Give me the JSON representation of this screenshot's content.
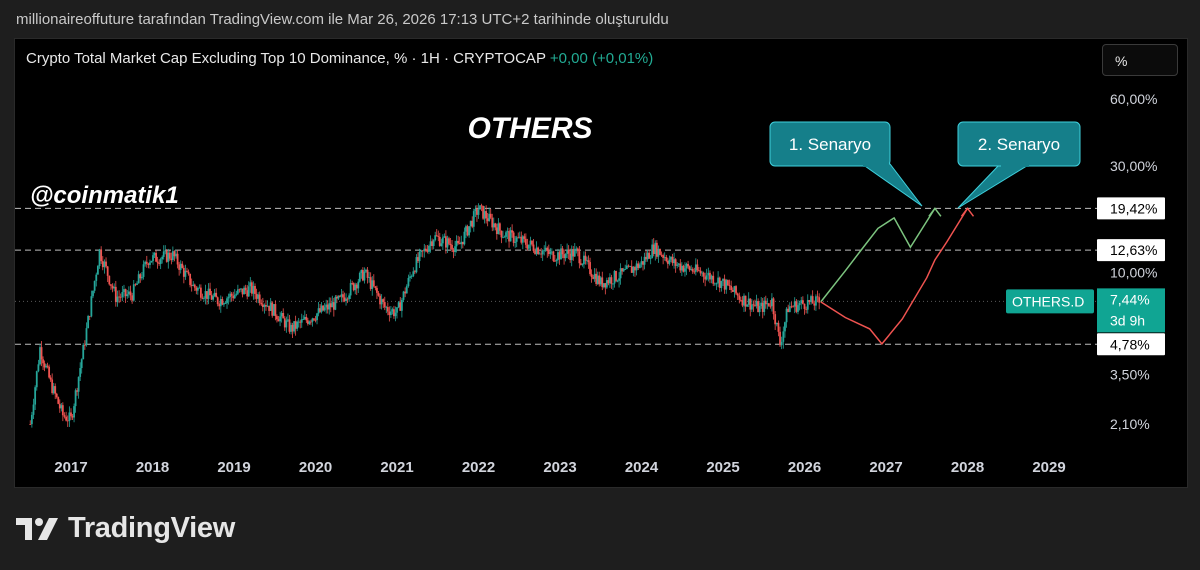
{
  "topline": "millionaireoffuture tarafından TradingView.com ile Mar 26, 2026 17:13 UTC+2 tarihinde oluşturuldu",
  "header": {
    "title": "Crypto Total Market Cap Excluding Top 10 Dominance, % · 1H · CRYPTOCAP",
    "change": "+0,00 (+0,01%)",
    "scale_button": "%"
  },
  "footer": {
    "brand": "TradingView"
  },
  "colors": {
    "up": "#26a69a",
    "down": "#ef5350",
    "bull_path": "#7cc47f",
    "bear_path": "#ef5350",
    "accent": "#10a593",
    "callout": "#157f8a"
  },
  "chart_data": {
    "type": "candlestick",
    "title": "OTHERS",
    "watermark": "@coinmatik1",
    "y_scale": "log",
    "y_ticks": [
      "60,00%",
      "30,00%",
      "10,00%",
      "3,50%",
      "2,10%"
    ],
    "x_ticks": [
      "2017",
      "2018",
      "2019",
      "2020",
      "2021",
      "2022",
      "2023",
      "2024",
      "2025",
      "2026",
      "2027",
      "2028",
      "2029"
    ],
    "horizontal_levels": [
      {
        "label": "19,42%",
        "value": 19.42
      },
      {
        "label": "12,63%",
        "value": 12.63
      },
      {
        "label": "4,78%",
        "value": 4.78
      }
    ],
    "current": {
      "symbol": "OTHERS.D",
      "value": "7,44%",
      "countdown": "3d 9h"
    },
    "history": [
      [
        2016.5,
        2.1
      ],
      [
        2016.62,
        4.6
      ],
      [
        2016.75,
        3.2
      ],
      [
        2016.9,
        2.3
      ],
      [
        2017.0,
        2.2
      ],
      [
        2017.15,
        4.5
      ],
      [
        2017.35,
        12.5
      ],
      [
        2017.55,
        7.8
      ],
      [
        2017.75,
        8.0
      ],
      [
        2017.95,
        11.5
      ],
      [
        2018.25,
        12.0
      ],
      [
        2018.5,
        8.7
      ],
      [
        2018.8,
        7.5
      ],
      [
        2019.2,
        8.5
      ],
      [
        2019.45,
        7.0
      ],
      [
        2019.7,
        5.6
      ],
      [
        2020.0,
        6.5
      ],
      [
        2020.3,
        7.5
      ],
      [
        2020.6,
        10.0
      ],
      [
        2020.85,
        7.0
      ],
      [
        2021.0,
        6.6
      ],
      [
        2021.2,
        10.5
      ],
      [
        2021.45,
        14.5
      ],
      [
        2021.75,
        13.0
      ],
      [
        2022.0,
        19.4
      ],
      [
        2022.3,
        15.0
      ],
      [
        2022.6,
        13.5
      ],
      [
        2022.9,
        12.0
      ],
      [
        2023.2,
        12.3
      ],
      [
        2023.5,
        9.0
      ],
      [
        2023.8,
        10.0
      ],
      [
        2024.0,
        11.0
      ],
      [
        2024.15,
        13.0
      ],
      [
        2024.4,
        11.0
      ],
      [
        2024.8,
        9.8
      ],
      [
        2025.0,
        9.0
      ],
      [
        2025.2,
        7.8
      ],
      [
        2025.45,
        6.9
      ],
      [
        2025.6,
        7.5
      ],
      [
        2025.7,
        4.8
      ],
      [
        2025.8,
        7.0
      ],
      [
        2026.0,
        7.3
      ],
      [
        2026.2,
        7.4
      ]
    ],
    "scenarios": [
      {
        "name": "1. Senaryo",
        "points": [
          [
            2026.2,
            7.4
          ],
          [
            2026.5,
            10.2
          ],
          [
            2026.7,
            12.7
          ],
          [
            2026.9,
            15.8
          ],
          [
            2027.1,
            17.6
          ],
          [
            2027.3,
            13.0
          ],
          [
            2027.6,
            19.42
          ]
        ]
      },
      {
        "name": "2. Senaryo",
        "points": [
          [
            2026.2,
            7.4
          ],
          [
            2026.5,
            6.3
          ],
          [
            2026.8,
            5.6
          ],
          [
            2026.95,
            4.8
          ],
          [
            2027.2,
            6.2
          ],
          [
            2027.5,
            9.5
          ],
          [
            2027.6,
            11.4
          ],
          [
            2027.75,
            13.8
          ],
          [
            2028.0,
            19.42
          ]
        ]
      }
    ]
  }
}
